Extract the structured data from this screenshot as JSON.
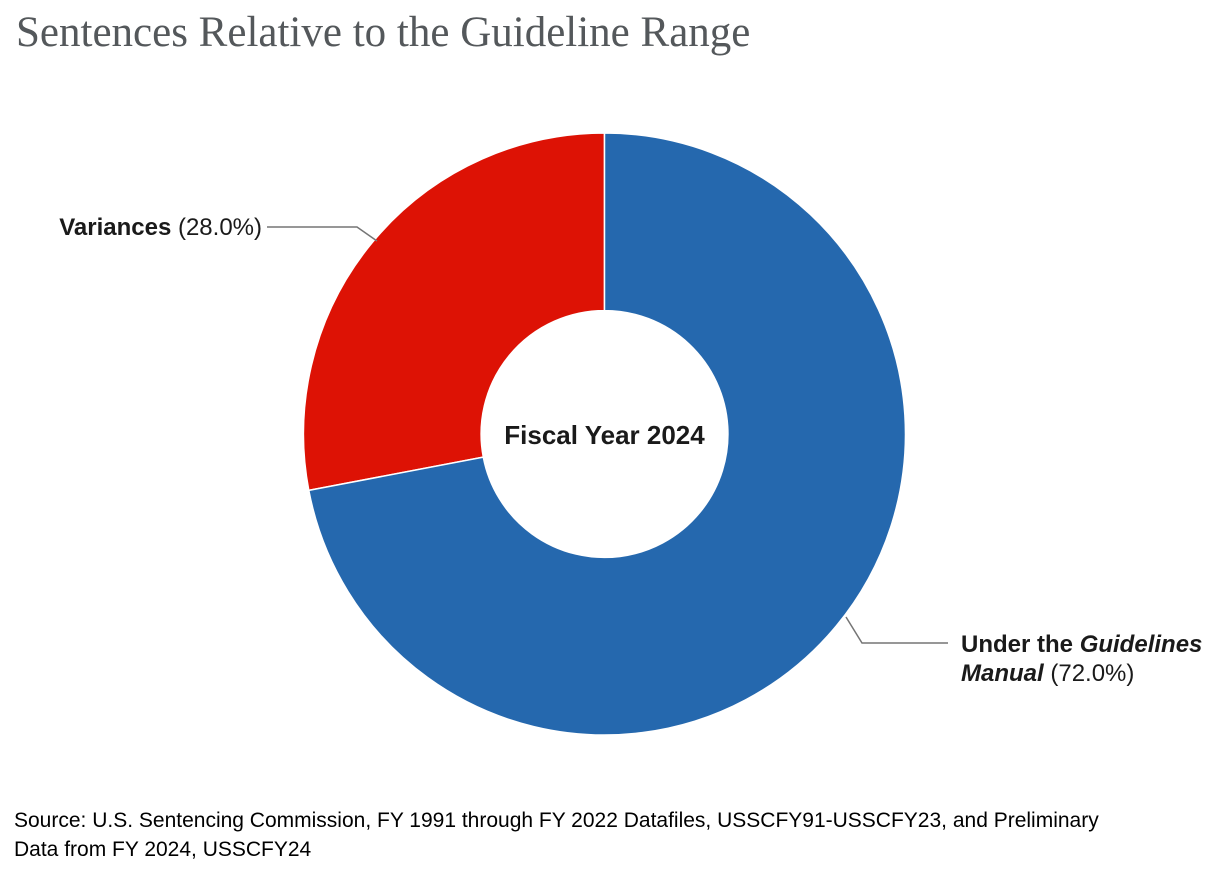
{
  "title": "Sentences Relative to the Guideline Range",
  "chart_data": {
    "type": "pie",
    "subtype": "donut",
    "title": "Sentences Relative to the Guideline Range",
    "center_label": "Fiscal Year 2024",
    "start_angle_deg": 0,
    "direction": "clockwise",
    "donut_hole_ratio": 0.41,
    "legend_position": "callout-labels",
    "slices": [
      {
        "label": "Under the Guidelines Manual",
        "value": 72.0,
        "percent_label": "72.0%",
        "color": "#2568ae"
      },
      {
        "label": "Variances",
        "value": 28.0,
        "percent_label": "28.0%",
        "color": "#dd1205"
      }
    ]
  },
  "callouts": {
    "variances": {
      "name": "Variances",
      "pct": " (28.0%)"
    },
    "under": {
      "prefix": "Under the ",
      "italic": "Guidelines Manual",
      "pct": " (72.0%)"
    }
  },
  "source": {
    "line1": "Source: U.S. Sentencing Commission, FY 1991 through FY 2022 Datafiles, USSCFY91-USSCFY23, and Preliminary",
    "line2": "Data from FY 2024, USSCFY24"
  },
  "colors": {
    "blue": "#2568ae",
    "red": "#dd1205",
    "title_text": "#54585b",
    "label_text": "#1a1a1a",
    "leader_line": "#757575"
  }
}
